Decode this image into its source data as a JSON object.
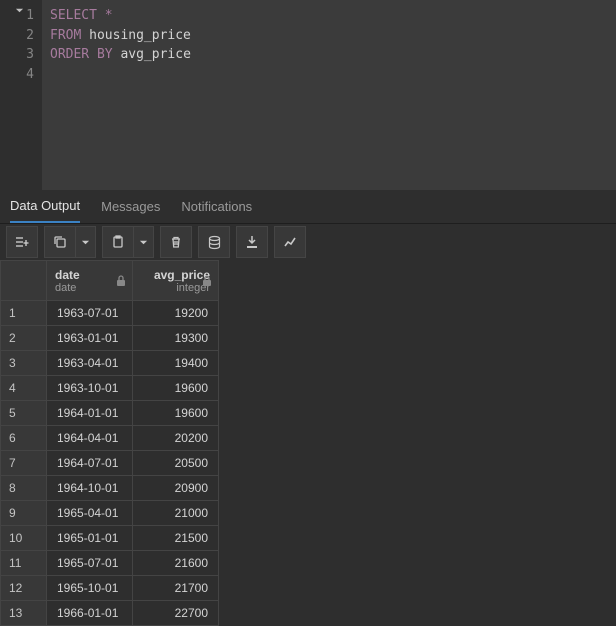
{
  "editor": {
    "lines": [
      {
        "num": "1",
        "parts": [
          {
            "t": "SELECT",
            "c": "kw"
          },
          {
            "t": " ",
            "c": "ident"
          },
          {
            "t": "*",
            "c": "op"
          }
        ]
      },
      {
        "num": "2",
        "parts": [
          {
            "t": "FROM",
            "c": "kw"
          },
          {
            "t": " housing_price",
            "c": "ident"
          }
        ]
      },
      {
        "num": "3",
        "parts": [
          {
            "t": "ORDER BY",
            "c": "kw"
          },
          {
            "t": " avg_price",
            "c": "ident"
          }
        ]
      },
      {
        "num": "4",
        "parts": []
      }
    ]
  },
  "tabs": {
    "data_output": "Data Output",
    "messages": "Messages",
    "notifications": "Notifications"
  },
  "columns": [
    {
      "name": "date",
      "type": "date"
    },
    {
      "name": "avg_price",
      "type": "integer"
    }
  ],
  "rows": [
    {
      "n": "1",
      "date": "1963-07-01",
      "avg_price": "19200"
    },
    {
      "n": "2",
      "date": "1963-01-01",
      "avg_price": "19300"
    },
    {
      "n": "3",
      "date": "1963-04-01",
      "avg_price": "19400"
    },
    {
      "n": "4",
      "date": "1963-10-01",
      "avg_price": "19600"
    },
    {
      "n": "5",
      "date": "1964-01-01",
      "avg_price": "19600"
    },
    {
      "n": "6",
      "date": "1964-04-01",
      "avg_price": "20200"
    },
    {
      "n": "7",
      "date": "1964-07-01",
      "avg_price": "20500"
    },
    {
      "n": "8",
      "date": "1964-10-01",
      "avg_price": "20900"
    },
    {
      "n": "9",
      "date": "1965-04-01",
      "avg_price": "21000"
    },
    {
      "n": "10",
      "date": "1965-01-01",
      "avg_price": "21500"
    },
    {
      "n": "11",
      "date": "1965-07-01",
      "avg_price": "21600"
    },
    {
      "n": "12",
      "date": "1965-10-01",
      "avg_price": "21700"
    },
    {
      "n": "13",
      "date": "1966-01-01",
      "avg_price": "22700"
    }
  ],
  "colors": {
    "bg": "#2e2e2e",
    "editor_bg": "#3b3b3b",
    "keyword": "#a77b9e",
    "border": "#444444",
    "header_bg": "#383838"
  }
}
